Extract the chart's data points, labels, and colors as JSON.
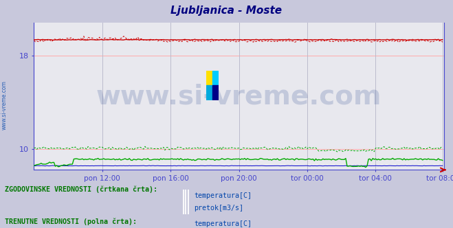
{
  "title": "Ljubljanica - Moste",
  "title_color": "#000080",
  "bg_color": "#c8c8dc",
  "plot_bg_color": "#e8e8ee",
  "grid_color_h": "#ffaaaa",
  "grid_color_v": "#bbbbcc",
  "axis_color": "#4444cc",
  "x_tick_labels": [
    "pon 12:00",
    "pon 16:00",
    "pon 20:00",
    "tor 00:00",
    "tor 04:00",
    "tor 08:00"
  ],
  "y_ticks": [
    10,
    18
  ],
  "ylim": [
    8.2,
    20.8
  ],
  "xlim": [
    0,
    288
  ],
  "n_points": 288,
  "temp_solid_value": 19.35,
  "temp_dashed_value": 19.25,
  "pretok_solid_value": 9.1,
  "pretok_dashed_value": 10.05,
  "height_solid_value": 8.55,
  "temp_color": "#cc0000",
  "pretok_color": "#00aa00",
  "height_color": "#0000cc",
  "watermark_text": "www.si-vreme.com",
  "watermark_color": "#1a3a8a",
  "watermark_alpha": 0.18,
  "watermark_fontsize": 28,
  "legend_hist_label": "ZGODOVINSKE VREDNOSTI (črtkana črta):",
  "legend_curr_label": "TRENUTNE VREDNOSTI (polna črta):",
  "legend_temp_label": "temperatura[C]",
  "legend_pretok_label": "pretok[m3/s]",
  "legend_text_color": "#0044aa",
  "legend_header_color": "#007700",
  "tick_label_color": "#0044aa",
  "sidebar_text": "www.si-vreme.com",
  "sidebar_color": "#0044aa",
  "x_tick_positions": [
    48,
    96,
    144,
    192,
    240,
    287
  ]
}
